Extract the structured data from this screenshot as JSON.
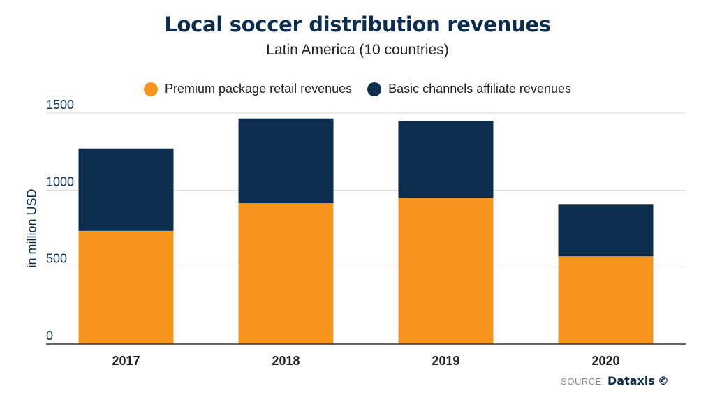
{
  "chart_data": {
    "type": "bar",
    "stacked": true,
    "title": "Local soccer distribution revenues",
    "subtitle": "Latin America (10 countries)",
    "ylabel": "in million USD",
    "xlabel": "",
    "categories": [
      "2017",
      "2018",
      "2019",
      "2020"
    ],
    "series": [
      {
        "name": "Premium package retail revenues",
        "color": "#f7941d",
        "values": [
          735,
          915,
          950,
          570
        ]
      },
      {
        "name": "Basic channels affiliate revenues",
        "color": "#0c2d4e",
        "values": [
          535,
          550,
          500,
          335
        ]
      }
    ],
    "ylim": [
      0,
      1500
    ],
    "yticks": [
      "0",
      "500",
      "1000",
      "1500"
    ],
    "grid": true,
    "legend_position": "top"
  },
  "source": {
    "prefix": "SOURCE:",
    "brand": "Dataxis",
    "mark": "©"
  }
}
